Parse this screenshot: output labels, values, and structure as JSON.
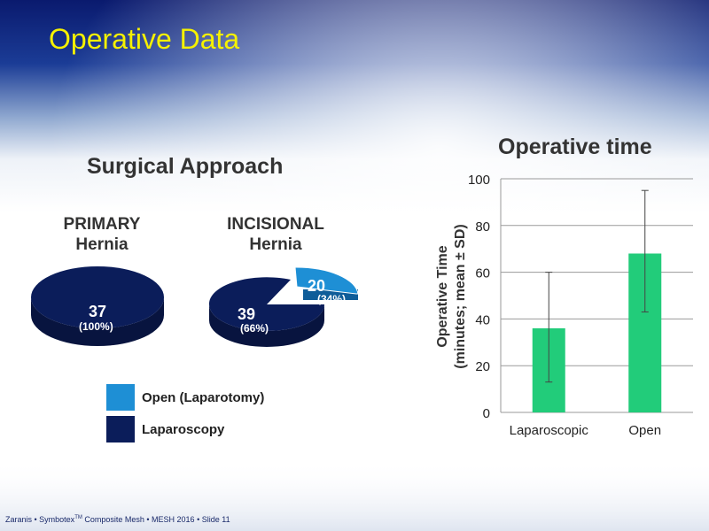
{
  "slide": {
    "title": "Operative Data",
    "footer_author": "Zaranis • Symbotex",
    "footer_tm": "TM",
    "footer_rest": " Composite Mesh • MESH 2016 • Slide 11"
  },
  "surgical_approach": {
    "title": "Surgical Approach",
    "primary_label_1": "PRIMARY",
    "primary_label_2": "Hernia",
    "incisional_label_1": "INCISIONAL",
    "incisional_label_2": "Hernia",
    "legend": [
      {
        "label": "Open (Laparotomy)",
        "color": "#1e8fd5"
      },
      {
        "label": "Laparoscopy",
        "color": "#0b1d5a"
      }
    ]
  },
  "chart_data": [
    {
      "type": "pie",
      "title": "PRIMARY Hernia",
      "slices": [
        {
          "name": "Laparoscopy",
          "value": 37,
          "percent_label": "(100%)",
          "color": "#0b1d5a"
        }
      ]
    },
    {
      "type": "pie",
      "title": "INCISIONAL Hernia",
      "slices": [
        {
          "name": "Laparoscopy",
          "value": 39,
          "percent_label": "(66%)",
          "color": "#0b1d5a"
        },
        {
          "name": "Open (Laparotomy)",
          "value": 20,
          "percent_label": "(34%)",
          "color": "#1e8fd5"
        }
      ]
    },
    {
      "type": "bar",
      "title": "Operative time",
      "categories": [
        "Laparoscopic",
        "Open"
      ],
      "values": [
        36,
        68
      ],
      "error_low": [
        13,
        43
      ],
      "error_high": [
        60,
        95
      ],
      "ylabel_line1": "Operative Time",
      "ylabel_line2": "(minutes; mean ± SD)",
      "ylim": [
        0,
        100
      ],
      "yticks": [
        0,
        20,
        40,
        60,
        80,
        100
      ],
      "grid": true,
      "bar_color": "#22cc7a"
    }
  ]
}
